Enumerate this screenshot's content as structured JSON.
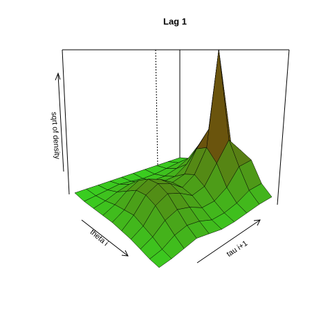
{
  "chart_data": {
    "type": "surface",
    "title": "Lag 1",
    "xlab": "theta i",
    "ylab": "tau i+1",
    "zlab": "sqrt of density",
    "zlim": [
      0,
      1
    ],
    "low_color": "#33dd22",
    "high_color": "#8b0000",
    "z": [
      [
        0.02,
        0.02,
        0.02,
        0.02,
        0.02,
        0.02,
        0.02,
        0.02,
        0.02,
        0.02
      ],
      [
        0.02,
        0.03,
        0.04,
        0.05,
        0.04,
        0.03,
        0.03,
        0.04,
        0.05,
        0.05
      ],
      [
        0.03,
        0.05,
        0.08,
        0.1,
        0.08,
        0.06,
        0.06,
        0.08,
        0.12,
        0.15
      ],
      [
        0.04,
        0.08,
        0.14,
        0.18,
        0.14,
        0.1,
        0.1,
        0.15,
        0.25,
        0.3
      ],
      [
        0.05,
        0.1,
        0.2,
        0.24,
        0.2,
        0.14,
        0.16,
        0.3,
        0.4,
        0.25
      ],
      [
        0.05,
        0.12,
        0.22,
        0.26,
        0.22,
        0.15,
        0.2,
        0.35,
        1.0,
        0.3
      ],
      [
        0.05,
        0.1,
        0.2,
        0.24,
        0.2,
        0.14,
        0.16,
        0.28,
        0.4,
        0.28
      ],
      [
        0.04,
        0.08,
        0.15,
        0.18,
        0.15,
        0.1,
        0.1,
        0.15,
        0.25,
        0.25
      ],
      [
        0.03,
        0.05,
        0.1,
        0.12,
        0.1,
        0.06,
        0.06,
        0.08,
        0.12,
        0.12
      ],
      [
        0.03,
        0.04,
        0.06,
        0.08,
        0.06,
        0.04,
        0.04,
        0.05,
        0.06,
        0.06
      ]
    ]
  }
}
